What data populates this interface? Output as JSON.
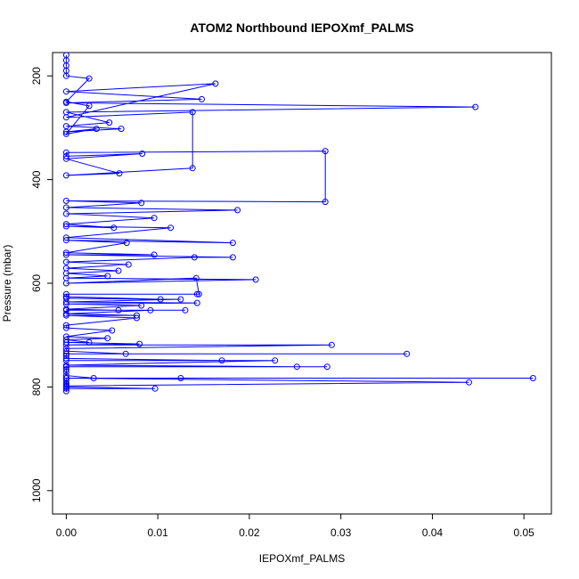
{
  "chart_data": {
    "type": "line",
    "title": "ATOM2 Northbound IEPOXmf_PALMS",
    "xlabel": "IEPOXmf_PALMS",
    "ylabel": "Pressure (mbar)",
    "xlim": [
      -0.0015,
      0.053
    ],
    "ylim": [
      1045,
      155
    ],
    "y_reversed": true,
    "grid": false,
    "legend": "none",
    "series_color": "#0000ff",
    "x_ticks": [
      "0.00",
      "0.01",
      "0.02",
      "0.03",
      "0.04",
      "0.05"
    ],
    "y_ticks": [
      "200",
      "400",
      "600",
      "800",
      "1000"
    ],
    "x_tick_values": [
      0.0,
      0.01,
      0.02,
      0.03,
      0.04,
      0.05
    ],
    "y_tick_values": [
      200,
      400,
      600,
      800,
      1000
    ],
    "series": [
      {
        "points": [
          [
            0.0,
            808
          ],
          [
            0.0,
            803
          ],
          [
            0.0,
            798
          ],
          [
            0.0,
            793
          ],
          [
            0.0,
            788
          ],
          [
            0.0,
            783
          ],
          [
            0.051,
            783
          ],
          [
            0.0,
            783
          ],
          [
            0.044,
            791
          ],
          [
            0.0,
            798
          ],
          [
            0.0,
            803
          ],
          [
            0.0097,
            803
          ],
          [
            0.0,
            800
          ],
          [
            0.0,
            795
          ],
          [
            0.0,
            783
          ],
          [
            0.0125,
            783
          ],
          [
            0.0,
            783
          ],
          [
            0.003,
            783
          ],
          [
            0.0,
            778
          ],
          [
            0.0,
            771
          ],
          [
            0.0,
            766
          ],
          [
            0.0,
            761
          ],
          [
            0.0285,
            761
          ],
          [
            0.0,
            761
          ],
          [
            0.0252,
            761
          ],
          [
            0.0,
            758
          ],
          [
            0.0228,
            749
          ],
          [
            0.0,
            749
          ],
          [
            0.017,
            749
          ],
          [
            0.0,
            745
          ],
          [
            0.0,
            740
          ],
          [
            0.0,
            736
          ],
          [
            0.0372,
            736
          ],
          [
            0.0,
            736
          ],
          [
            0.0065,
            736
          ],
          [
            0.0,
            731
          ],
          [
            0.0,
            726
          ],
          [
            0.029,
            719
          ],
          [
            0.0,
            719
          ],
          [
            0.008,
            717
          ],
          [
            0.0,
            714
          ],
          [
            0.0025,
            714
          ],
          [
            0.0,
            709
          ],
          [
            0.0045,
            706
          ],
          [
            0.0,
            703
          ],
          [
            0.005,
            691
          ],
          [
            0.0,
            686
          ],
          [
            0.0,
            681
          ],
          [
            0.0077,
            667
          ],
          [
            0.0,
            662
          ],
          [
            0.0077,
            662
          ],
          [
            0.0,
            659
          ],
          [
            0.0092,
            652
          ],
          [
            0.013,
            652
          ],
          [
            0.0,
            652
          ],
          [
            0.0057,
            652
          ],
          [
            0.0,
            650
          ],
          [
            0.0082,
            643
          ],
          [
            0.0,
            640
          ],
          [
            0.0143,
            638
          ],
          [
            0.0,
            636
          ],
          [
            0.0125,
            631
          ],
          [
            0.0,
            629
          ],
          [
            0.0103,
            631
          ],
          [
            0.0,
            626
          ],
          [
            0.0,
            621
          ],
          [
            0.0143,
            621
          ],
          [
            0.0145,
            621
          ],
          [
            0.0142,
            590
          ],
          [
            0.0,
            600
          ],
          [
            0.0207,
            593
          ],
          [
            0.0,
            590
          ],
          [
            0.0045,
            586
          ],
          [
            0.0,
            581
          ],
          [
            0.0057,
            576
          ],
          [
            0.0,
            571
          ],
          [
            0.0068,
            564
          ],
          [
            0.0,
            559
          ],
          [
            0.014,
            550
          ],
          [
            0.0182,
            550
          ],
          [
            0.0,
            545
          ],
          [
            0.0096,
            545
          ],
          [
            0.0,
            541
          ],
          [
            0.0066,
            522
          ],
          [
            0.0,
            517
          ],
          [
            0.0182,
            522
          ],
          [
            0.0,
            512
          ],
          [
            0.0114,
            493
          ],
          [
            0.0,
            490
          ],
          [
            0.0052,
            493
          ],
          [
            0.0,
            486
          ],
          [
            0.0096,
            474
          ],
          [
            0.0,
            466
          ],
          [
            0.0187,
            459
          ],
          [
            0.0,
            454
          ],
          [
            0.0082,
            445
          ],
          [
            0.0,
            441
          ],
          [
            0.0283,
            443
          ],
          [
            0.0283,
            345
          ],
          [
            0.0,
            348
          ],
          [
            0.0,
            355
          ],
          [
            0.0083,
            350
          ],
          [
            0.0,
            360
          ],
          [
            0.0058,
            388
          ],
          [
            0.0,
            392
          ],
          [
            0.0138,
            378
          ],
          [
            0.0138,
            270
          ],
          [
            0.0,
            280
          ],
          [
            0.0163,
            215
          ],
          [
            0.0,
            230
          ],
          [
            0.0148,
            245
          ],
          [
            0.0,
            252
          ],
          [
            0.0447,
            260
          ],
          [
            0.0,
            270
          ],
          [
            0.0047,
            290
          ],
          [
            0.0,
            297
          ],
          [
            0.006,
            302
          ],
          [
            0.0,
            308
          ],
          [
            0.0033,
            302
          ],
          [
            0.0,
            312
          ],
          [
            0.0025,
            258
          ],
          [
            0.0,
            250
          ],
          [
            0.0025,
            205
          ],
          [
            0.0,
            200
          ],
          [
            0.0,
            190
          ],
          [
            0.0,
            180
          ],
          [
            0.0,
            170
          ],
          [
            0.0,
            160
          ]
        ]
      }
    ]
  }
}
